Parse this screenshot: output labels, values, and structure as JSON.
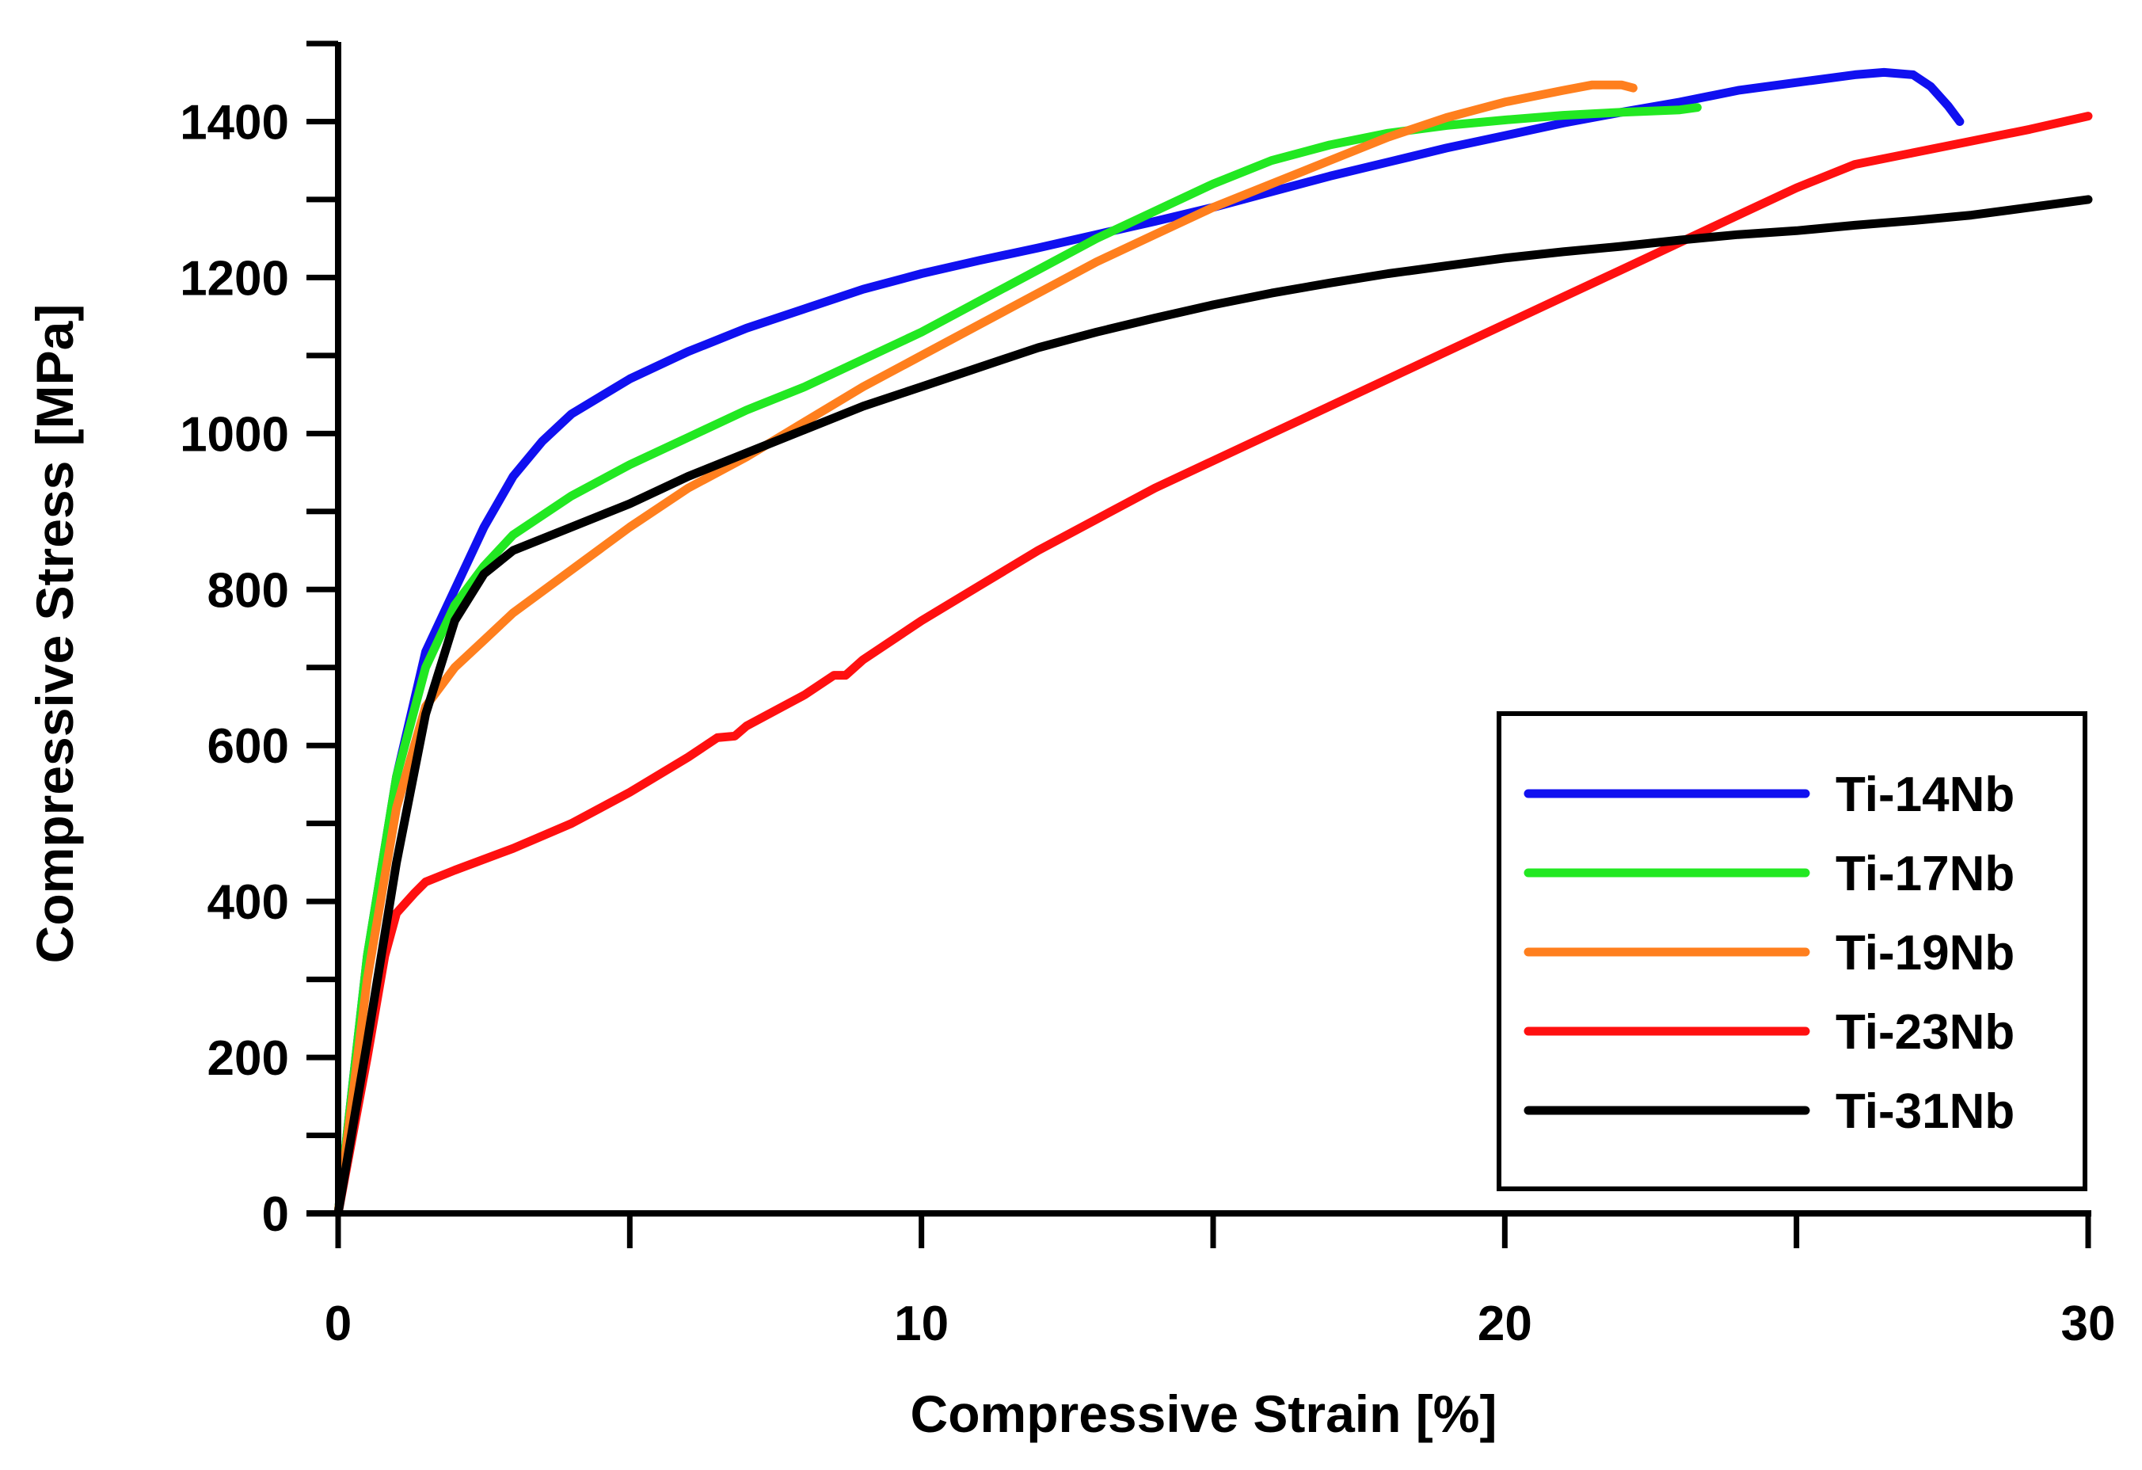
{
  "chart_data": {
    "type": "line",
    "title": "",
    "xlabel": "Compressive Strain [%]",
    "ylabel": "Compressive Stress [MPa]",
    "xlim": [
      0,
      30
    ],
    "ylim": [
      0,
      1500
    ],
    "x_ticks": [
      0,
      10,
      20,
      30
    ],
    "x_minor_ticks": [
      5,
      15,
      25
    ],
    "y_ticks": [
      0,
      200,
      400,
      600,
      800,
      1000,
      1200,
      1400
    ],
    "y_minor_ticks": [
      100,
      300,
      500,
      700,
      900,
      1100,
      1300,
      1500
    ],
    "grid": false,
    "legend_position": "bottom-right",
    "series": [
      {
        "name": "Ti-14Nb",
        "color": "#1010f0",
        "points": [
          [
            0,
            0
          ],
          [
            0.5,
            330
          ],
          [
            1,
            560
          ],
          [
            1.5,
            720
          ],
          [
            2,
            800
          ],
          [
            2.5,
            880
          ],
          [
            3,
            945
          ],
          [
            3.5,
            990
          ],
          [
            4,
            1025
          ],
          [
            5,
            1070
          ],
          [
            6,
            1105
          ],
          [
            7,
            1135
          ],
          [
            8,
            1160
          ],
          [
            9,
            1185
          ],
          [
            10,
            1205
          ],
          [
            11,
            1222
          ],
          [
            12,
            1238
          ],
          [
            13,
            1255
          ],
          [
            14,
            1272
          ],
          [
            15,
            1290
          ],
          [
            16,
            1310
          ],
          [
            17,
            1330
          ],
          [
            18,
            1348
          ],
          [
            19,
            1366
          ],
          [
            20,
            1382
          ],
          [
            21,
            1398
          ],
          [
            22,
            1412
          ],
          [
            23,
            1425
          ],
          [
            24,
            1440
          ],
          [
            25,
            1450
          ],
          [
            26,
            1460
          ],
          [
            26.5,
            1463
          ],
          [
            27,
            1460
          ],
          [
            27.3,
            1445
          ],
          [
            27.6,
            1420
          ],
          [
            27.8,
            1400
          ]
        ]
      },
      {
        "name": "Ti-17Nb",
        "color": "#22e822",
        "points": [
          [
            0,
            0
          ],
          [
            0.5,
            330
          ],
          [
            1,
            560
          ],
          [
            1.5,
            700
          ],
          [
            2,
            780
          ],
          [
            2.5,
            830
          ],
          [
            3,
            870
          ],
          [
            4,
            920
          ],
          [
            5,
            960
          ],
          [
            6,
            995
          ],
          [
            7,
            1030
          ],
          [
            8,
            1060
          ],
          [
            9,
            1095
          ],
          [
            10,
            1130
          ],
          [
            11,
            1170
          ],
          [
            12,
            1210
          ],
          [
            13,
            1250
          ],
          [
            14,
            1285
          ],
          [
            15,
            1320
          ],
          [
            16,
            1350
          ],
          [
            17,
            1370
          ],
          [
            18,
            1385
          ],
          [
            19,
            1395
          ],
          [
            20,
            1402
          ],
          [
            21,
            1408
          ],
          [
            22,
            1412
          ],
          [
            23,
            1415
          ],
          [
            23.3,
            1418
          ]
        ]
      },
      {
        "name": "Ti-19Nb",
        "color": "#ff7f1e",
        "points": [
          [
            0,
            0
          ],
          [
            0.5,
            300
          ],
          [
            1,
            520
          ],
          [
            1.5,
            650
          ],
          [
            2,
            700
          ],
          [
            2.5,
            735
          ],
          [
            3,
            770
          ],
          [
            4,
            825
          ],
          [
            5,
            880
          ],
          [
            6,
            930
          ],
          [
            7,
            970
          ],
          [
            8,
            1015
          ],
          [
            9,
            1060
          ],
          [
            10,
            1100
          ],
          [
            11,
            1140
          ],
          [
            12,
            1180
          ],
          [
            13,
            1220
          ],
          [
            14,
            1255
          ],
          [
            15,
            1290
          ],
          [
            16,
            1320
          ],
          [
            17,
            1350
          ],
          [
            18,
            1380
          ],
          [
            19,
            1405
          ],
          [
            20,
            1425
          ],
          [
            21,
            1440
          ],
          [
            21.5,
            1447
          ],
          [
            22,
            1447
          ],
          [
            22.2,
            1443
          ]
        ]
      },
      {
        "name": "Ti-23Nb",
        "color": "#ff1010",
        "points": [
          [
            0,
            0
          ],
          [
            0.5,
            200
          ],
          [
            0.8,
            330
          ],
          [
            1,
            385
          ],
          [
            1.3,
            410
          ],
          [
            1.5,
            425
          ],
          [
            2,
            440
          ],
          [
            3,
            468
          ],
          [
            4,
            500
          ],
          [
            5,
            540
          ],
          [
            6,
            585
          ],
          [
            6.5,
            610
          ],
          [
            6.8,
            612
          ],
          [
            7,
            625
          ],
          [
            8,
            665
          ],
          [
            8.5,
            690
          ],
          [
            8.7,
            690
          ],
          [
            9,
            710
          ],
          [
            10,
            760
          ],
          [
            11,
            805
          ],
          [
            12,
            850
          ],
          [
            13,
            890
          ],
          [
            14,
            930
          ],
          [
            15,
            965
          ],
          [
            16,
            1000
          ],
          [
            17,
            1035
          ],
          [
            18,
            1070
          ],
          [
            19,
            1105
          ],
          [
            20,
            1140
          ],
          [
            21,
            1175
          ],
          [
            22,
            1210
          ],
          [
            23,
            1245
          ],
          [
            24,
            1280
          ],
          [
            25,
            1315
          ],
          [
            26,
            1345
          ],
          [
            27,
            1360
          ],
          [
            28,
            1375
          ],
          [
            29,
            1390
          ],
          [
            30,
            1407
          ]
        ]
      },
      {
        "name": "Ti-31Nb",
        "color": "#000000",
        "points": [
          [
            0,
            0
          ],
          [
            0.5,
            220
          ],
          [
            1,
            450
          ],
          [
            1.5,
            640
          ],
          [
            2,
            760
          ],
          [
            2.5,
            820
          ],
          [
            3,
            850
          ],
          [
            4,
            880
          ],
          [
            5,
            910
          ],
          [
            6,
            945
          ],
          [
            7,
            975
          ],
          [
            8,
            1005
          ],
          [
            9,
            1035
          ],
          [
            10,
            1060
          ],
          [
            11,
            1085
          ],
          [
            12,
            1110
          ],
          [
            13,
            1130
          ],
          [
            14,
            1148
          ],
          [
            15,
            1165
          ],
          [
            16,
            1180
          ],
          [
            17,
            1193
          ],
          [
            18,
            1205
          ],
          [
            19,
            1215
          ],
          [
            20,
            1225
          ],
          [
            21,
            1233
          ],
          [
            22,
            1240
          ],
          [
            23,
            1248
          ],
          [
            24,
            1255
          ],
          [
            25,
            1260
          ],
          [
            26,
            1267
          ],
          [
            27,
            1273
          ],
          [
            28,
            1280
          ],
          [
            29,
            1290
          ],
          [
            30,
            1300
          ]
        ]
      }
    ]
  }
}
